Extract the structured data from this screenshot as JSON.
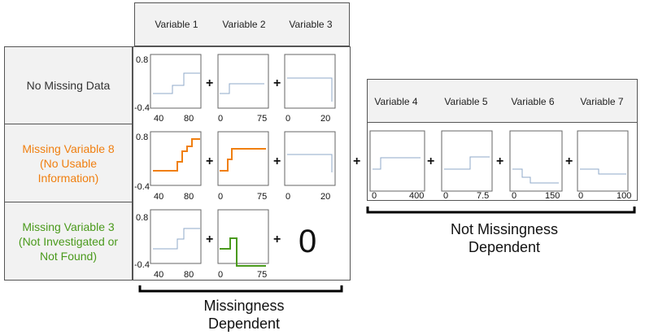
{
  "left_header": {
    "columns": [
      "Variable 1",
      "Variable 2",
      "Variable 3"
    ]
  },
  "right_header": {
    "columns": [
      "Variable 4",
      "Variable 5",
      "Variable 6",
      "Variable 7"
    ]
  },
  "rows": [
    {
      "label": "No Missing Data",
      "color": "#333333"
    },
    {
      "label": "Missing Variable 8\n(No Usable\nInformation)",
      "color": "#f07f10"
    },
    {
      "label": "Missing Variable 3\n(Not Investigated or\nNot Found)",
      "color": "#4a9a1c"
    }
  ],
  "axis": {
    "y_top": "0.8",
    "y_bottom": "-0.4",
    "var1_ticks": [
      "40",
      "80"
    ],
    "var2_ticks": [
      "0",
      "75"
    ],
    "var3_ticks": [
      "0",
      "20"
    ],
    "var4_ticks": [
      "0",
      "400"
    ],
    "var5_ticks": [
      "0",
      "7.5"
    ],
    "var6_ticks": [
      "0",
      "150"
    ],
    "var7_ticks": [
      "0",
      "100"
    ]
  },
  "plus": "+",
  "zero": "0",
  "brackets": {
    "left_text": "Missingness\nDependent",
    "right_text": "Not Missingness\nDependent"
  },
  "colors": {
    "blue_line": "#8fa8c8",
    "orange_line": "#f07f10",
    "green_line": "#4a9a1c"
  }
}
